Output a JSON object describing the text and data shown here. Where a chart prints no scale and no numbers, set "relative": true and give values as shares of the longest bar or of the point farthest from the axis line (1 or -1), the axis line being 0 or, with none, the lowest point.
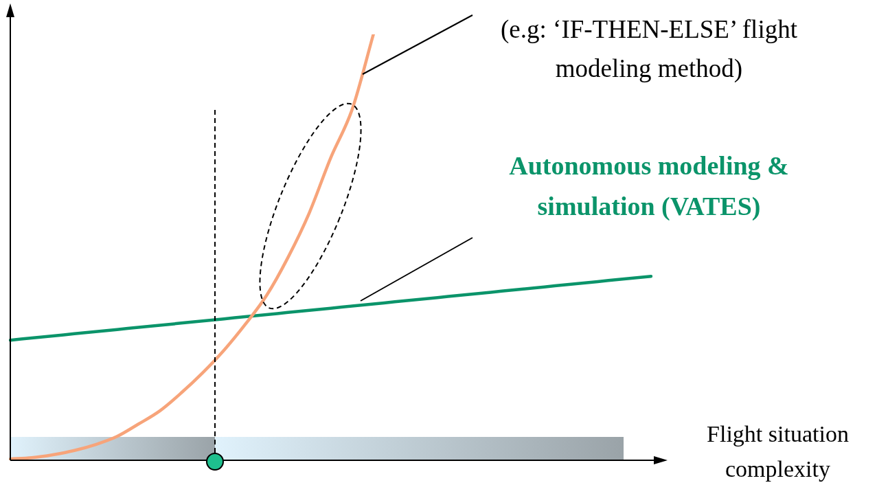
{
  "chart_data": {
    "type": "line",
    "relative": true,
    "marker": "none",
    "xlabel": "Flight situation complexity",
    "annotations": [
      "(e.g: ‘IF-THEN-ELSE’ flight modeling method)"
    ],
    "categories": [
      null,
      null,
      null,
      null,
      null,
      null,
      null,
      null,
      null,
      null,
      null,
      null,
      null,
      null,
      null,
      null,
      null,
      null,
      null,
      null,
      null,
      null,
      null,
      null,
      null,
      null,
      null,
      null,
      null,
      null,
      null
    ],
    "series": [
      {
        "color": "#f7a47a",
        "values": [
          0.003,
          0.006,
          0.013,
          0.023,
          0.037,
          0.056,
          0.085,
          0.116,
          0.158,
          0.205,
          0.258,
          0.319,
          0.387,
          0.476,
          0.581,
          0.71,
          0.823,
          1,
          null,
          null,
          null,
          null,
          null,
          null,
          null,
          null,
          null,
          null,
          null,
          null,
          null
        ]
      },
      {
        "name": "Autonomous modeling & simulation (VATES)",
        "color": "#0b946a",
        "values": [
          0.282,
          0.287,
          0.292,
          0.297,
          0.302,
          0.307,
          0.312,
          0.317,
          0.322,
          0.327,
          0.332,
          0.337,
          0.342,
          0.347,
          0.352,
          0.357,
          0.362,
          0.367,
          0.372,
          0.377,
          0.382,
          0.387,
          0.392,
          0.397,
          0.402,
          0.407,
          0.412,
          0.417,
          0.422,
          0.427,
          0.432
        ]
      }
    ]
  }
}
